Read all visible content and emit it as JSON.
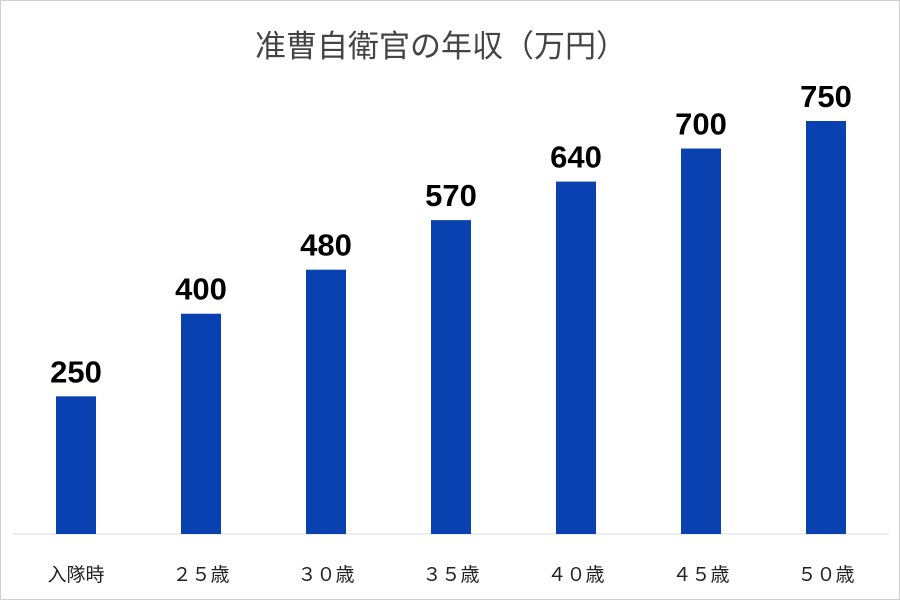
{
  "chart_data": {
    "type": "bar",
    "title": "准曹自衛官の年収（万円）",
    "categories": [
      "入隊時",
      "２５歳",
      "３０歳",
      "３５歳",
      "４０歳",
      "４５歳",
      "５０歳"
    ],
    "values": [
      250,
      400,
      480,
      570,
      640,
      700,
      750
    ],
    "data_labels": [
      "250",
      "400",
      "480",
      "570",
      "640",
      "700",
      "750"
    ],
    "xlabel": "",
    "ylabel": "",
    "ylim": [
      0,
      750
    ],
    "grid": false,
    "legend": "none",
    "bar_color": "#0a41b0"
  }
}
